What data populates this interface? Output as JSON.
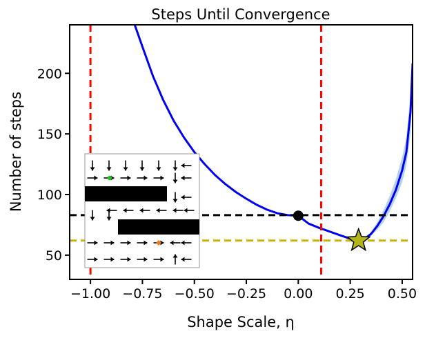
{
  "chart_data": {
    "type": "line",
    "title": "Steps Until Convergence",
    "xlabel": "Shape Scale, η",
    "ylabel": "Number of steps",
    "xlim": [
      -1.1,
      0.55
    ],
    "ylim": [
      30,
      240
    ],
    "xticks": [
      -1.0,
      -0.75,
      -0.5,
      -0.25,
      0.0,
      0.25,
      0.5
    ],
    "xtick_labels": [
      "−1.00",
      "−0.75",
      "−0.50",
      "−0.25",
      "0.00",
      "0.25",
      "0.50"
    ],
    "yticks": [
      50,
      100,
      150,
      200
    ],
    "ytick_labels": [
      "50",
      "100",
      "150",
      "200"
    ],
    "grid": false,
    "series": [
      {
        "color": "#0000ee",
        "x": [
          -0.787,
          -0.75,
          -0.7,
          -0.65,
          -0.6,
          -0.55,
          -0.5,
          -0.45,
          -0.4,
          -0.35,
          -0.3,
          -0.25,
          -0.2,
          -0.15,
          -0.1,
          -0.05,
          0.0,
          0.05,
          0.1,
          0.15,
          0.2,
          0.25,
          0.29,
          0.32,
          0.35,
          0.38,
          0.41,
          0.44,
          0.47,
          0.5,
          0.52,
          0.54,
          0.55
        ],
        "y": [
          240,
          222,
          198,
          178,
          161,
          147,
          135,
          125,
          116,
          108.5,
          102,
          96.5,
          91.5,
          87.5,
          84.5,
          83,
          82.5,
          76,
          72.5,
          69.5,
          66.5,
          63.5,
          62,
          63.5,
          67.5,
          74,
          82,
          92,
          104,
          120,
          135,
          168,
          208
        ],
        "band_lower": [
          240,
          222,
          198,
          178,
          161,
          147,
          135,
          125,
          116,
          108.5,
          102,
          96.5,
          91.5,
          87.5,
          84.5,
          83,
          82.5,
          76,
          72.5,
          69.5,
          66.5,
          63.5,
          62,
          63,
          66,
          71,
          77,
          86,
          97,
          110,
          124,
          150,
          190
        ],
        "band_upper": [
          240,
          222,
          198,
          178,
          161,
          147,
          135,
          125,
          116,
          108.5,
          102,
          96.5,
          91.5,
          87.5,
          84.5,
          83,
          82.5,
          76,
          72.5,
          69.5,
          66.5,
          63.5,
          62,
          64,
          69,
          77,
          87,
          99,
          113,
          131,
          147,
          183,
          225
        ]
      }
    ],
    "vlines": [
      {
        "x": -1.0,
        "color": "#ff0000",
        "style": "dashed"
      },
      {
        "x": 0.11,
        "color": "#ff0000",
        "style": "dashed"
      }
    ],
    "hlines": [
      {
        "y": 83,
        "color": "#000000",
        "style": "dashed"
      },
      {
        "y": 62,
        "color": "#c8b400",
        "style": "dashed"
      }
    ],
    "markers": [
      {
        "x": 0.0,
        "y": 82.5,
        "shape": "circle",
        "color": "#000000"
      },
      {
        "x": 0.29,
        "y": 62,
        "shape": "star",
        "color": "#b5b51a"
      }
    ],
    "inset": {
      "type": "gridworld",
      "start_color": "#22c022",
      "goal_color": "#f07820",
      "arrow_rows": [
        [
          "down",
          "down",
          "down",
          "down",
          "down",
          "down",
          "left"
        ],
        [
          "right",
          "right-start",
          "right",
          "right",
          "right",
          "down",
          "left"
        ],
        [
          "wall",
          "wall",
          "wall",
          "wall",
          "wall",
          "down",
          "left"
        ],
        [
          "blank",
          "left",
          "left",
          "left",
          "left",
          "left",
          "left"
        ],
        [
          "down",
          "down",
          "wall",
          "wall",
          "wall",
          "wall",
          "wall"
        ],
        [
          "right",
          "right",
          "right",
          "right",
          "right-goal",
          "left",
          "left"
        ],
        [
          "right",
          "right",
          "right",
          "right",
          "right",
          "up",
          "left"
        ]
      ]
    }
  }
}
